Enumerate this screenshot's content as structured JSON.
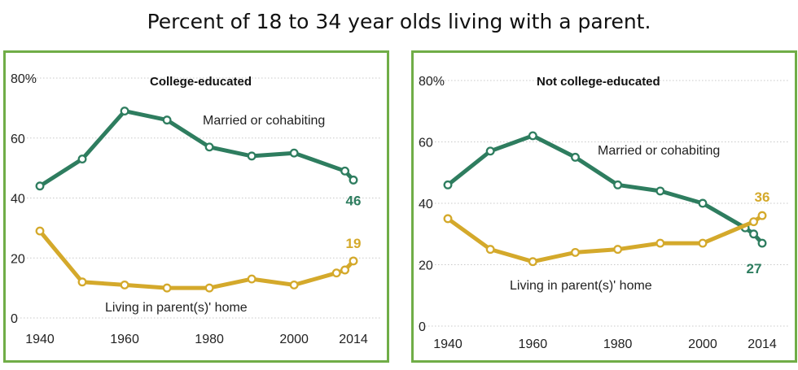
{
  "title": "Percent of 18 to 34 year olds living with a parent.",
  "colors": {
    "married": "#2e7d5f",
    "parent": "#d4a92b",
    "border": "#70ad47"
  },
  "chart_data": [
    {
      "type": "line",
      "title": "College-educated",
      "x": [
        1940,
        1950,
        1960,
        1970,
        1980,
        1990,
        2000,
        2010,
        2012,
        2014
      ],
      "ylim": [
        0,
        80
      ],
      "yticks": [
        0,
        20,
        40,
        60,
        80
      ],
      "ytick_labels": [
        "0",
        "20",
        "40",
        "60",
        "80%"
      ],
      "xticks": [
        1940,
        1960,
        1980,
        2000,
        2014
      ],
      "xtick_labels": [
        "1940",
        "1960",
        "1980",
        "2000",
        "2014"
      ],
      "grid": true,
      "series": [
        {
          "name": "Married or cohabiting",
          "color": "#2e7d5f",
          "values": [
            44,
            53,
            69,
            66,
            57,
            54,
            55,
            null,
            49,
            46
          ],
          "end_label": "46"
        },
        {
          "name": "Living in parent(s)' home",
          "color": "#d4a92b",
          "values": [
            29,
            12,
            11,
            10,
            10,
            13,
            11,
            15,
            16,
            19
          ],
          "end_label": "19"
        }
      ]
    },
    {
      "type": "line",
      "title": "Not college-educated",
      "x": [
        1940,
        1950,
        1960,
        1970,
        1980,
        1990,
        2000,
        2010,
        2012,
        2014
      ],
      "ylim": [
        0,
        80
      ],
      "yticks": [
        0,
        20,
        40,
        60,
        80
      ],
      "ytick_labels": [
        "0",
        "20",
        "40",
        "60",
        "80%"
      ],
      "xticks": [
        1940,
        1960,
        1980,
        2000,
        2014
      ],
      "xtick_labels": [
        "1940",
        "1960",
        "1980",
        "2000",
        "2014"
      ],
      "grid": true,
      "series": [
        {
          "name": "Married or cohabiting",
          "color": "#2e7d5f",
          "values": [
            46,
            57,
            62,
            55,
            46,
            44,
            40,
            32,
            30,
            27
          ],
          "end_label": "27"
        },
        {
          "name": "Living in parent(s)' home",
          "color": "#d4a92b",
          "values": [
            35,
            25,
            21,
            24,
            25,
            27,
            27,
            null,
            34,
            36
          ],
          "end_label": "36"
        }
      ]
    }
  ]
}
